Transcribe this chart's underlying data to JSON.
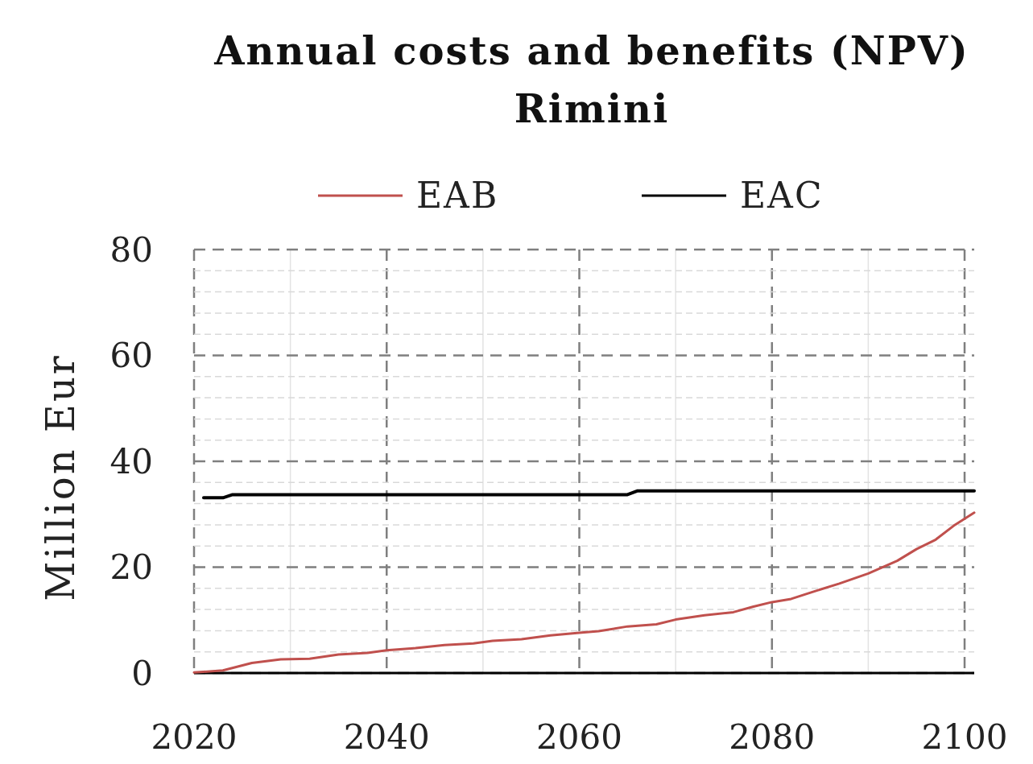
{
  "chart_data": {
    "type": "line",
    "title": "Annual costs and benefits (NPV)",
    "subtitle": "Rimini",
    "ylabel": "Million Eur",
    "xlim": [
      2020,
      2101
    ],
    "xticks": [
      2020,
      {
        "value": 2030,
        "label": null
      },
      2040,
      {
        "value": 2050,
        "label": null
      },
      2060,
      {
        "value": 2070,
        "label": null
      },
      2080,
      {
        "value": 2090,
        "label": null
      },
      2100
    ],
    "ylim": [
      0,
      80
    ],
    "yticks": [
      0,
      {
        "value": 4,
        "label": null
      },
      {
        "value": 8,
        "label": null
      },
      {
        "value": 12,
        "label": null
      },
      {
        "value": 16,
        "label": null
      },
      20,
      {
        "value": 24,
        "label": null
      },
      {
        "value": 28,
        "label": null
      },
      {
        "value": 32,
        "label": null
      },
      {
        "value": 36,
        "label": null
      },
      40,
      {
        "value": 44,
        "label": null
      },
      {
        "value": 48,
        "label": null
      },
      {
        "value": 52,
        "label": null
      },
      {
        "value": 56,
        "label": null
      },
      60,
      {
        "value": 64,
        "label": null
      },
      {
        "value": 68,
        "label": null
      },
      {
        "value": 72,
        "label": null
      },
      {
        "value": 76,
        "label": null
      },
      80
    ],
    "grid": true,
    "legend": "top",
    "series": [
      {
        "name": "EAB",
        "color": "#c0504d",
        "x": [
          2020,
          2023,
          2026,
          2029,
          2032,
          2035,
          2038,
          2040,
          2043,
          2046,
          2049,
          2051,
          2054,
          2057,
          2060,
          2062,
          2065,
          2068,
          2070,
          2073,
          2076,
          2078,
          2080,
          2082,
          2084,
          2087,
          2090,
          2093,
          2095,
          2097,
          2099,
          2101
        ],
        "values": [
          0.1,
          0.5,
          1.9,
          2.6,
          2.7,
          3.5,
          3.8,
          4.3,
          4.7,
          5.3,
          5.6,
          6.1,
          6.4,
          7.1,
          7.6,
          7.9,
          8.8,
          9.2,
          10.1,
          10.9,
          11.5,
          12.5,
          13.4,
          14.0,
          15.2,
          16.9,
          18.8,
          21.2,
          23.4,
          25.2,
          28.0,
          30.3
        ]
      },
      {
        "name": "EAC",
        "color": "#000000",
        "x": [
          2021,
          2023,
          2024,
          2065,
          2066,
          2101
        ],
        "values": [
          33.1,
          33.1,
          33.7,
          33.7,
          34.4,
          34.4
        ]
      }
    ]
  }
}
